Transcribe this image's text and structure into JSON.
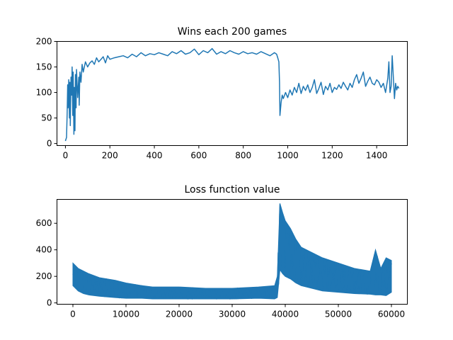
{
  "figure": {
    "background": "#ffffff",
    "line_color": "#1f77b4"
  },
  "chart_data": [
    {
      "type": "line",
      "title": "Wins each 200 games",
      "xlabel": "",
      "ylabel": "",
      "xlim": [
        -38,
        1538
      ],
      "ylim": [
        -4,
        200
      ],
      "xticks": [
        0,
        200,
        400,
        600,
        800,
        1000,
        1200,
        1400
      ],
      "yticks": [
        0,
        50,
        100,
        150,
        200
      ],
      "grid": false,
      "legend": "none",
      "series": [
        {
          "x": [
            0,
            5,
            8,
            10,
            12,
            15,
            18,
            20,
            22,
            25,
            28,
            30,
            33,
            35,
            38,
            40,
            43,
            45,
            48,
            50,
            55,
            60,
            62,
            65,
            70,
            75,
            80,
            90,
            100,
            110,
            120,
            130,
            140,
            150,
            160,
            170,
            180,
            190,
            200,
            220,
            240,
            260,
            280,
            300,
            320,
            340,
            360,
            380,
            400,
            420,
            440,
            460,
            480,
            500,
            520,
            540,
            560,
            580,
            600,
            620,
            640,
            660,
            680,
            700,
            720,
            740,
            760,
            780,
            800,
            820,
            840,
            860,
            880,
            900,
            920,
            940,
            950,
            955,
            960,
            963,
            965,
            970,
            975,
            980,
            990,
            1000,
            1010,
            1020,
            1030,
            1040,
            1050,
            1060,
            1070,
            1080,
            1090,
            1100,
            1110,
            1120,
            1130,
            1140,
            1150,
            1160,
            1170,
            1180,
            1190,
            1200,
            1210,
            1220,
            1230,
            1240,
            1250,
            1260,
            1270,
            1280,
            1290,
            1300,
            1310,
            1320,
            1330,
            1340,
            1350,
            1360,
            1370,
            1380,
            1390,
            1400,
            1410,
            1420,
            1430,
            1440,
            1450,
            1455,
            1460,
            1465,
            1470,
            1475,
            1480,
            1485,
            1490,
            1495,
            1500
          ],
          "values": [
            5,
            12,
            60,
            115,
            70,
            125,
            50,
            120,
            35,
            130,
            95,
            150,
            55,
            140,
            18,
            110,
            25,
            135,
            70,
            145,
            90,
            130,
            75,
            140,
            120,
            155,
            140,
            160,
            150,
            158,
            162,
            155,
            168,
            160,
            165,
            170,
            158,
            172,
            165,
            168,
            170,
            172,
            168,
            175,
            170,
            178,
            172,
            176,
            174,
            178,
            175,
            172,
            180,
            176,
            182,
            175,
            178,
            185,
            174,
            182,
            178,
            186,
            175,
            180,
            176,
            182,
            178,
            175,
            180,
            176,
            178,
            175,
            180,
            176,
            172,
            178,
            175,
            168,
            160,
            120,
            55,
            80,
            95,
            88,
            100,
            90,
            105,
            95,
            110,
            100,
            118,
            98,
            112,
            104,
            115,
            100,
            110,
            125,
            98,
            108,
            120,
            96,
            112,
            105,
            118,
            100,
            110,
            106,
            115,
            108,
            120,
            112,
            105,
            118,
            110,
            125,
            135,
            118,
            128,
            140,
            112,
            122,
            130,
            118,
            115,
            125,
            120,
            110,
            118,
            100,
            128,
            160,
            100,
            112,
            172,
            130,
            88,
            118,
            105,
            112,
            108
          ]
        }
      ]
    },
    {
      "type": "line",
      "title": "Loss function value",
      "xlabel": "",
      "ylabel": "",
      "xlim": [
        -3000,
        63000
      ],
      "ylim": [
        -10,
        780
      ],
      "xticks": [
        0,
        10000,
        20000,
        30000,
        40000,
        50000,
        60000
      ],
      "yticks": [
        0,
        200,
        400,
        600
      ],
      "grid": false,
      "legend": "none",
      "band": {
        "x": [
          0,
          1000,
          2000,
          3000,
          5000,
          8000,
          10000,
          13000,
          15000,
          20000,
          25000,
          30000,
          35000,
          38000,
          38500,
          39000,
          39500,
          40000,
          41000,
          42000,
          43000,
          45000,
          47000,
          50000,
          53000,
          56000,
          57000,
          58000,
          59000,
          60000
        ],
        "low": [
          130,
          90,
          70,
          60,
          50,
          40,
          35,
          35,
          30,
          30,
          30,
          30,
          35,
          30,
          40,
          250,
          220,
          200,
          180,
          150,
          130,
          110,
          90,
          80,
          70,
          65,
          60,
          60,
          55,
          80
        ],
        "high": [
          300,
          260,
          240,
          220,
          190,
          170,
          150,
          130,
          120,
          120,
          110,
          110,
          120,
          130,
          200,
          750,
          680,
          620,
          560,
          480,
          420,
          380,
          340,
          300,
          260,
          240,
          400,
          260,
          340,
          320
        ]
      }
    }
  ]
}
